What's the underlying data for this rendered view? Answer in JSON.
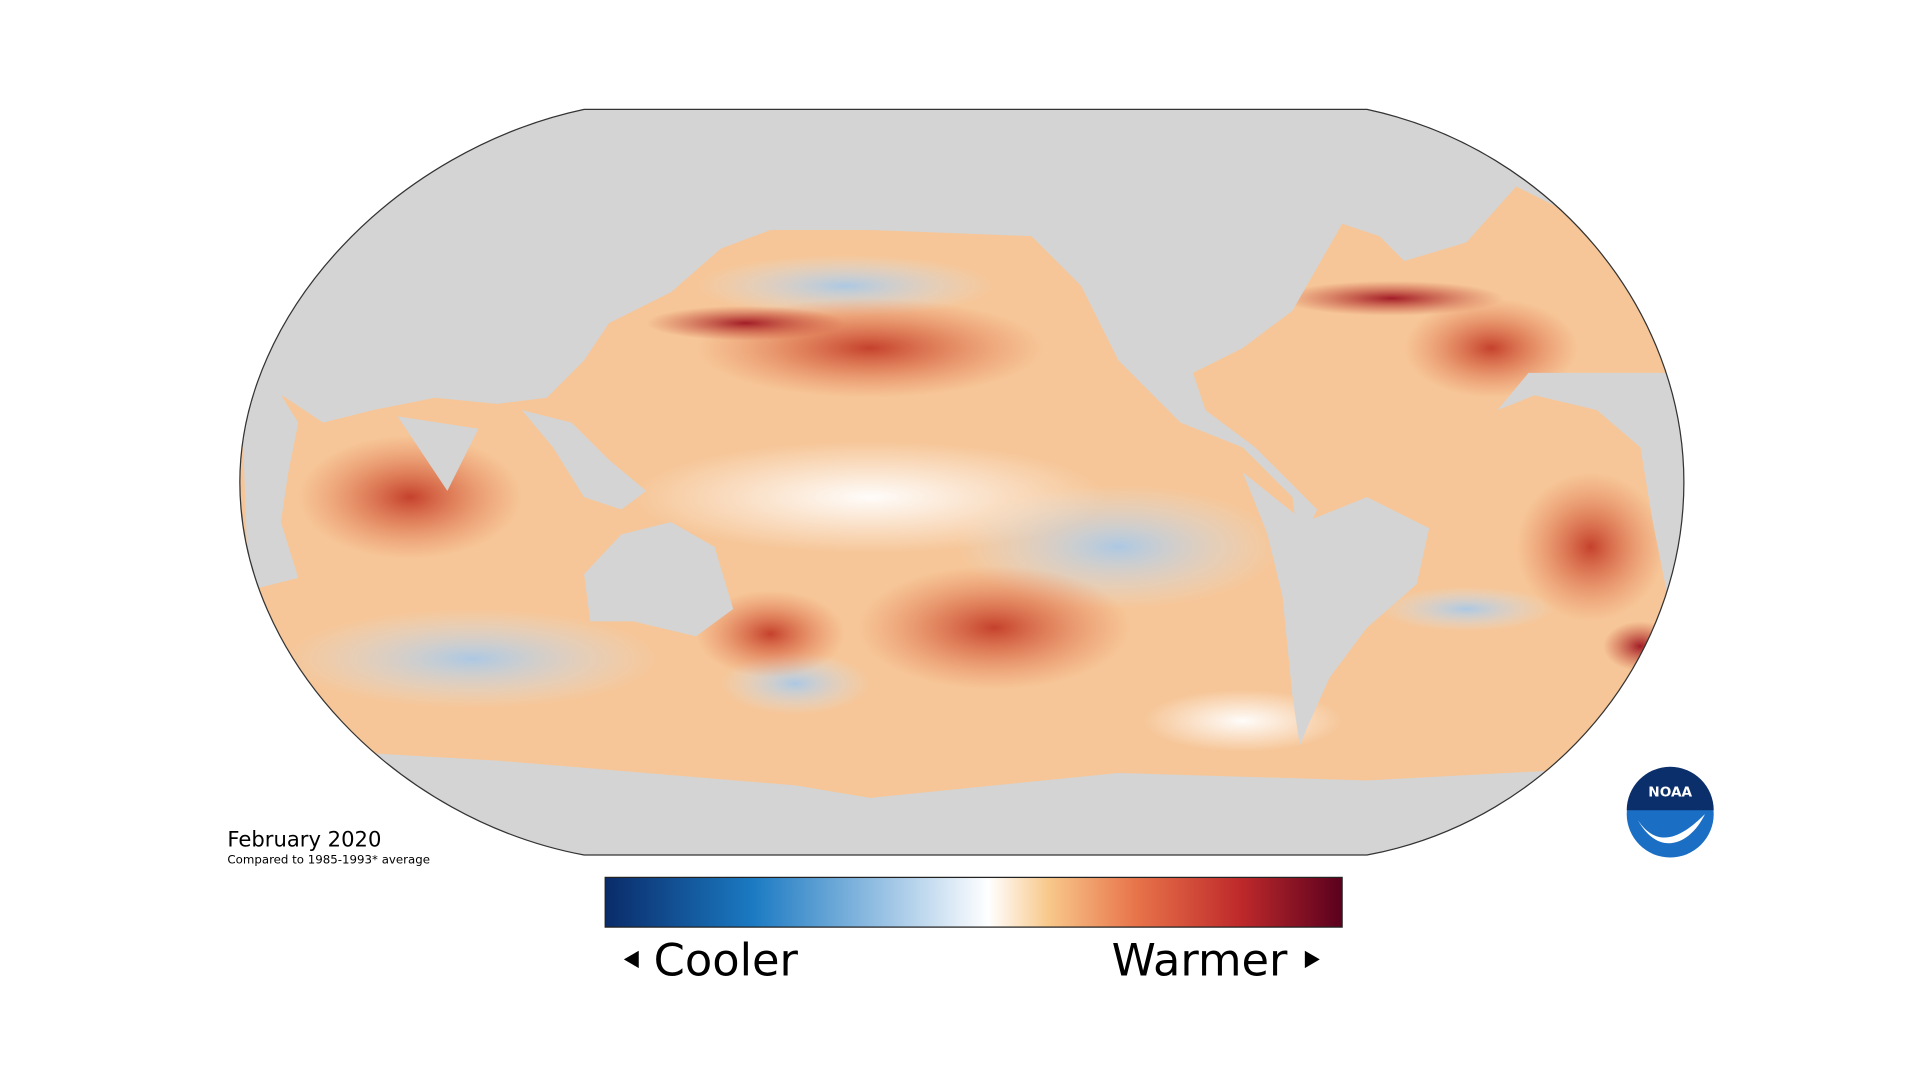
{
  "title": "February 2020",
  "subtitle": "Compared to 1985-1993* average",
  "legend": {
    "low": "Cooler",
    "high": "Warmer"
  },
  "logo": "NOAA"
}
